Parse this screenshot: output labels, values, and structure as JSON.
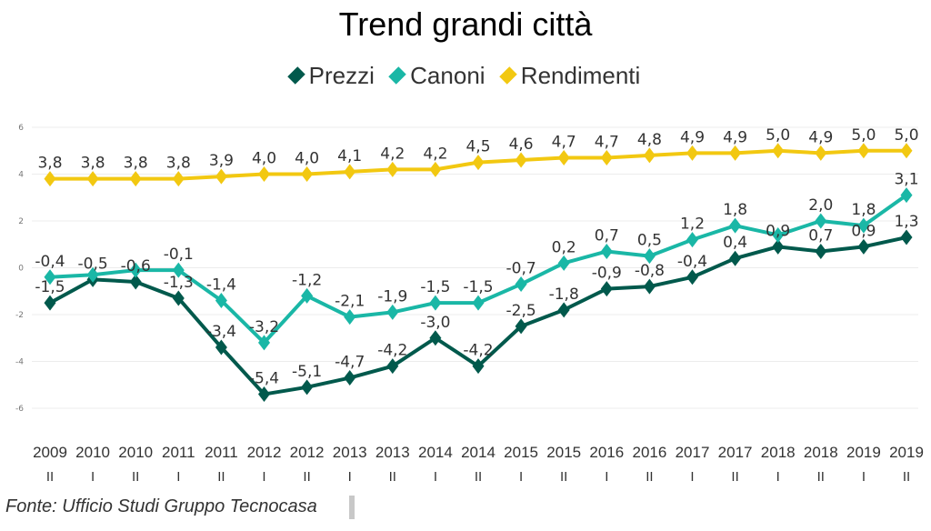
{
  "chart_data": {
    "type": "line",
    "title": "Trend grandi città",
    "xlabel": "",
    "ylabel": "",
    "ylim": [
      -6,
      6
    ],
    "yticks": [
      6,
      4,
      2,
      0,
      -2,
      -4,
      -6
    ],
    "grid": true,
    "legend_position": "top-center",
    "categories": [
      {
        "year": "2009",
        "half": "II"
      },
      {
        "year": "2010",
        "half": "I"
      },
      {
        "year": "2010",
        "half": "II"
      },
      {
        "year": "2011",
        "half": "I"
      },
      {
        "year": "2011",
        "half": "II"
      },
      {
        "year": "2012",
        "half": "I"
      },
      {
        "year": "2012",
        "half": "II"
      },
      {
        "year": "2013",
        "half": "I"
      },
      {
        "year": "2013",
        "half": "II"
      },
      {
        "year": "2014",
        "half": "I"
      },
      {
        "year": "2014",
        "half": "II"
      },
      {
        "year": "2015",
        "half": "I"
      },
      {
        "year": "2015",
        "half": "II"
      },
      {
        "year": "2016",
        "half": "I"
      },
      {
        "year": "2016",
        "half": "II"
      },
      {
        "year": "2017",
        "half": "I"
      },
      {
        "year": "2017",
        "half": "II"
      },
      {
        "year": "2018",
        "half": "I"
      },
      {
        "year": "2018",
        "half": "II"
      },
      {
        "year": "2019",
        "half": "I"
      },
      {
        "year": "2019",
        "half": "II"
      }
    ],
    "series": [
      {
        "name": "Prezzi",
        "color": "#01594C",
        "values": [
          -1.5,
          -0.5,
          -0.6,
          -1.3,
          -3.4,
          -5.4,
          -5.1,
          -4.7,
          -4.2,
          -3.0,
          -4.2,
          -2.5,
          -1.8,
          -0.9,
          -0.8,
          -0.4,
          0.4,
          0.9,
          0.7,
          0.9,
          1.3
        ],
        "labels": [
          "-1,5",
          "-0,5",
          "-0,6",
          "-1,3",
          "-3,4",
          "-5,4",
          "-5,1",
          "-4,7",
          "-4,2",
          "-3,0",
          "-4,2",
          "-2,5",
          "-1,8",
          "-0,9",
          "-0,8",
          "-0,4",
          "0,4",
          "0,9",
          "0,7",
          "0,9",
          "1,3"
        ]
      },
      {
        "name": "Canoni",
        "color": "#1AB7A6",
        "values": [
          -0.4,
          -0.3,
          -0.1,
          -0.1,
          -1.4,
          -3.2,
          -1.2,
          -2.1,
          -1.9,
          -1.5,
          -1.5,
          -0.7,
          0.2,
          0.7,
          0.5,
          1.2,
          1.8,
          1.4,
          2.0,
          1.8,
          3.1
        ],
        "labels": [
          "-0,4",
          "",
          "",
          "-0,1",
          "-1,4",
          "-3,2",
          "-1,2",
          "-2,1",
          "-1,9",
          "-1,5",
          "-1,5",
          "-0,7",
          "0,2",
          "0,7",
          "0,5",
          "1,2",
          "1,8",
          "",
          "2,0",
          "1,8",
          "3,1"
        ]
      },
      {
        "name": "Rendimenti",
        "color": "#F2C811",
        "values": [
          3.8,
          3.8,
          3.8,
          3.8,
          3.9,
          4.0,
          4.0,
          4.1,
          4.2,
          4.2,
          4.5,
          4.6,
          4.7,
          4.7,
          4.8,
          4.9,
          4.9,
          5.0,
          4.9,
          5.0,
          5.0
        ],
        "labels": [
          "3,8",
          "3,8",
          "3,8",
          "3,8",
          "3,9",
          "4,0",
          "4,0",
          "4,1",
          "4,2",
          "4,2",
          "4,5",
          "4,6",
          "4,7",
          "4,7",
          "4,8",
          "4,9",
          "4,9",
          "5,0",
          "4,9",
          "5,0",
          "5,0"
        ]
      }
    ]
  },
  "page": {
    "title": "Trend grandi città",
    "source": "Fonte: Ufficio Studi Gruppo Tecnocasa"
  },
  "legend": {
    "items": [
      {
        "label": "Prezzi",
        "color": "#01594C"
      },
      {
        "label": "Canoni",
        "color": "#1AB7A6"
      },
      {
        "label": "Rendimenti",
        "color": "#F2C811"
      }
    ]
  }
}
